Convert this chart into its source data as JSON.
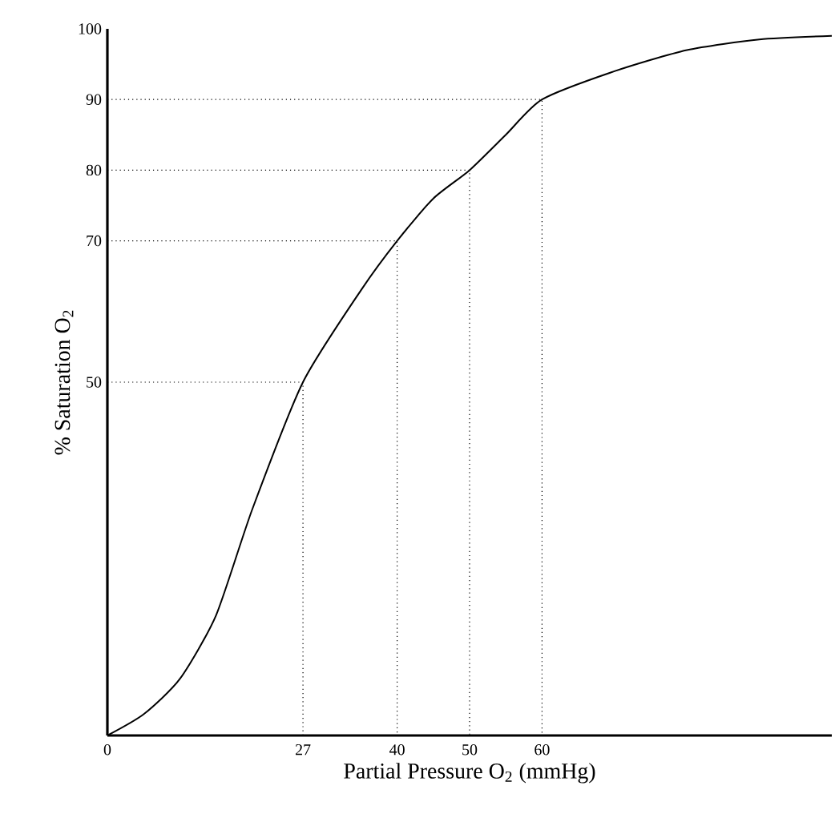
{
  "chart_data": {
    "type": "line",
    "xlabel": "Partial Pressure O$_{2}$ (mmHg)",
    "ylabel": "% Saturation O$_{2}$",
    "xlim": [
      0,
      100
    ],
    "ylim": [
      0,
      100
    ],
    "xticks": [
      0,
      27,
      40,
      50,
      60
    ],
    "yticks": [
      50,
      70,
      80,
      90,
      100
    ],
    "grid": false,
    "marker": "none",
    "series": [
      {
        "color": "#000000",
        "line_style": "solid",
        "x": [
          0,
          5,
          10,
          15,
          20,
          27,
          35,
          40,
          45,
          50,
          55,
          60,
          70,
          80,
          90,
          100
        ],
        "values": [
          0,
          3,
          8,
          17,
          32,
          50,
          63,
          70,
          76,
          80,
          85,
          90,
          94,
          97,
          98.5,
          99
        ]
      },
      {
        "color": "#000000",
        "line_style": "dotted",
        "x": [
          0,
          27,
          27
        ],
        "values": [
          50,
          50,
          0
        ]
      },
      {
        "color": "#000000",
        "line_style": "dotted",
        "x": [
          0,
          40,
          40
        ],
        "values": [
          70,
          70,
          0
        ]
      },
      {
        "color": "#000000",
        "line_style": "dotted",
        "x": [
          0,
          50,
          50
        ],
        "values": [
          80,
          80,
          0
        ]
      },
      {
        "color": "#000000",
        "line_style": "dotted",
        "x": [
          0,
          60,
          60
        ],
        "values": [
          90,
          90,
          0
        ]
      }
    ]
  }
}
